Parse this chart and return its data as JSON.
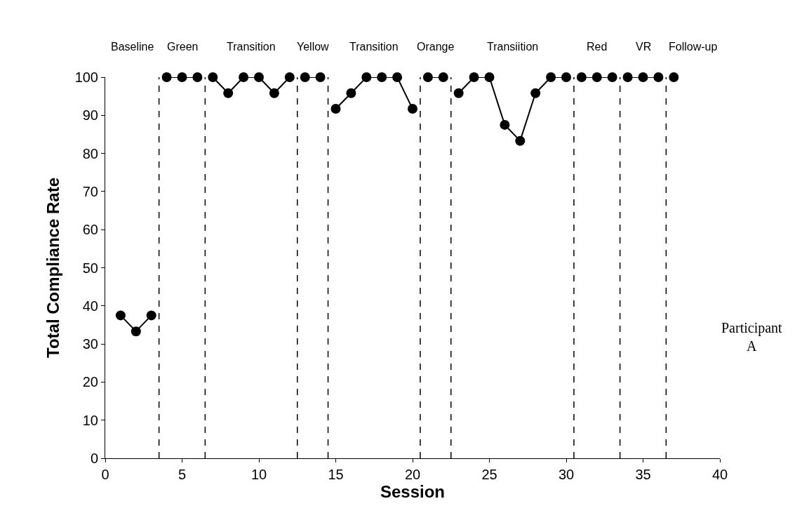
{
  "chart_data": {
    "type": "line",
    "xlabel": "Session",
    "ylabel": "Total Compliance Rate",
    "series": [
      {
        "color": "#000000",
        "x": [
          1,
          2,
          3
        ],
        "values": [
          37.5,
          33.3,
          37.5
        ]
      },
      {
        "color": "#000000",
        "x": [
          4,
          5,
          6
        ],
        "values": [
          100,
          100,
          100
        ]
      },
      {
        "color": "#000000",
        "x": [
          7,
          8,
          9,
          10,
          11,
          12
        ],
        "values": [
          100,
          95.8,
          100,
          100,
          95.8,
          100
        ]
      },
      {
        "color": "#000000",
        "x": [
          13,
          14
        ],
        "values": [
          100,
          100
        ]
      },
      {
        "color": "#000000",
        "x": [
          15,
          16,
          17,
          18,
          19,
          20
        ],
        "values": [
          91.7,
          95.8,
          100,
          100,
          100,
          91.7
        ]
      },
      {
        "color": "#000000",
        "x": [
          21,
          22
        ],
        "values": [
          100,
          100
        ]
      },
      {
        "color": "#000000",
        "x": [
          23,
          24,
          25,
          26,
          27,
          28,
          29,
          30
        ],
        "values": [
          95.8,
          100,
          100,
          87.5,
          83.3,
          95.8,
          100,
          100
        ]
      },
      {
        "color": "#000000",
        "x": [
          31,
          32,
          33
        ],
        "values": [
          100,
          100,
          100
        ]
      },
      {
        "color": "#000000",
        "x": [
          34,
          35,
          36
        ],
        "values": [
          100,
          100,
          100
        ]
      },
      {
        "color": "#000000",
        "x": [
          37
        ],
        "values": [
          100
        ]
      }
    ],
    "marker": "circle",
    "line_style": "solid",
    "xlim": [
      0,
      40
    ],
    "xticks": [
      0,
      5,
      10,
      15,
      20,
      25,
      30,
      35,
      40
    ],
    "ylim": [
      0,
      100
    ],
    "yticks": [
      0,
      10,
      20,
      30,
      40,
      50,
      60,
      70,
      80,
      90,
      100
    ],
    "grid": false,
    "ref_lines": [
      {
        "axis": "x",
        "value": 3.5,
        "color": "#000000",
        "line_style": "dashed"
      },
      {
        "axis": "x",
        "value": 6.5,
        "color": "#000000",
        "line_style": "dashed"
      },
      {
        "axis": "x",
        "value": 12.5,
        "color": "#000000",
        "line_style": "dashed"
      },
      {
        "axis": "x",
        "value": 14.5,
        "color": "#000000",
        "line_style": "dashed"
      },
      {
        "axis": "x",
        "value": 20.5,
        "color": "#000000",
        "line_style": "dashed"
      },
      {
        "axis": "x",
        "value": 22.5,
        "color": "#000000",
        "line_style": "dashed"
      },
      {
        "axis": "x",
        "value": 30.5,
        "color": "#000000",
        "line_style": "dashed"
      },
      {
        "axis": "x",
        "value": 33.5,
        "color": "#000000",
        "line_style": "dashed"
      },
      {
        "axis": "x",
        "value": 36.5,
        "color": "#000000",
        "line_style": "dashed"
      }
    ],
    "annotations": [
      "Baseline",
      "Green",
      "Transition",
      "Yellow",
      "Transition",
      "Orange",
      "Transiition",
      "Red",
      "VR",
      "Follow-up",
      "Participant\nA"
    ]
  }
}
